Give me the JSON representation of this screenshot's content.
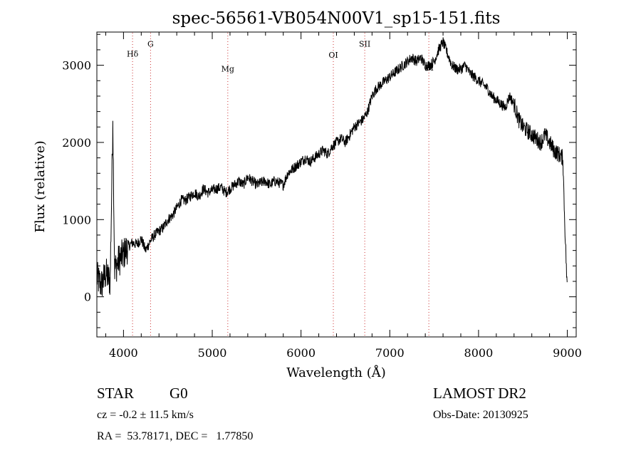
{
  "chart_data": {
    "type": "line",
    "title": "spec-56561-VB054N00V1_sp15-151.fits",
    "xlabel": "Wavelength (Å)",
    "ylabel": "Flux (relative)",
    "xlim": [
      3700,
      9100
    ],
    "ylim": [
      -520,
      3430
    ],
    "x_ticks": [
      4000,
      5000,
      6000,
      7000,
      8000,
      9000
    ],
    "y_ticks": [
      0,
      1000,
      2000,
      3000
    ],
    "grid": false,
    "series": [
      {
        "x": [
          3700,
          3750,
          3800,
          3850,
          3880,
          3900,
          3950,
          4000,
          4050,
          4100,
          4150,
          4200,
          4250,
          4300,
          4350,
          4400,
          4450,
          4500,
          4550,
          4600,
          4650,
          4700,
          4750,
          4800,
          4850,
          4900,
          4950,
          5000,
          5050,
          5100,
          5150,
          5200,
          5250,
          5300,
          5350,
          5400,
          5450,
          5500,
          5550,
          5600,
          5650,
          5700,
          5750,
          5800,
          5850,
          5900,
          5950,
          6000,
          6050,
          6100,
          6150,
          6200,
          6250,
          6300,
          6350,
          6400,
          6450,
          6500,
          6550,
          6600,
          6650,
          6700,
          6750,
          6800,
          6850,
          6900,
          6950,
          7000,
          7050,
          7100,
          7150,
          7200,
          7250,
          7300,
          7350,
          7400,
          7450,
          7500,
          7550,
          7600,
          7650,
          7700,
          7750,
          7800,
          7850,
          7900,
          7950,
          8000,
          8050,
          8100,
          8150,
          8200,
          8250,
          8300,
          8350,
          8400,
          8450,
          8500,
          8550,
          8600,
          8650,
          8700,
          8750,
          8800,
          8850,
          8900,
          8950,
          8970,
          9000
        ],
        "y": [
          250,
          150,
          300,
          200,
          2280,
          350,
          480,
          550,
          650,
          700,
          680,
          750,
          600,
          720,
          800,
          850,
          900,
          1000,
          1050,
          1150,
          1250,
          1250,
          1300,
          1350,
          1300,
          1400,
          1350,
          1380,
          1400,
          1420,
          1350,
          1400,
          1450,
          1500,
          1450,
          1550,
          1500,
          1450,
          1480,
          1500,
          1450,
          1500,
          1480,
          1450,
          1600,
          1650,
          1700,
          1750,
          1800,
          1750,
          1800,
          1850,
          1900,
          1850,
          1950,
          2000,
          2050,
          2000,
          2100,
          2200,
          2250,
          2300,
          2400,
          2600,
          2700,
          2750,
          2800,
          2850,
          2900,
          2950,
          3000,
          3050,
          3100,
          3050,
          3100,
          3000,
          3000,
          3050,
          3200,
          3300,
          3150,
          3000,
          2950,
          2950,
          3000,
          2900,
          2850,
          2800,
          2750,
          2700,
          2600,
          2550,
          2500,
          2450,
          2600,
          2500,
          2300,
          2200,
          2150,
          2100,
          2050,
          2000,
          2100,
          2000,
          1900,
          1850,
          1800,
          1000,
          50
        ]
      }
    ],
    "line_labels": [
      {
        "label": "Hδ",
        "x": 4102,
        "y": 3110
      },
      {
        "label": "G",
        "x": 4305,
        "y": 3240
      },
      {
        "label": "Mg",
        "x": 5175,
        "y": 2920
      },
      {
        "label": "OI",
        "x": 6364,
        "y": 3100
      },
      {
        "label": "SII",
        "x": 6718,
        "y": 3240
      },
      {
        "label": "OI",
        "x": 7440,
        "y": 2930
      }
    ],
    "line_color": "#000000",
    "marker_color": "#cc3333"
  },
  "footer": {
    "object_type": "STAR",
    "subclass": "G0",
    "survey": "LAMOST DR2",
    "redshift": "cz = -0.2 ± 11.5 km/s",
    "obs_date": "Obs-Date: 20130925",
    "coords": "RA =  53.78171, DEC =   1.77850"
  }
}
